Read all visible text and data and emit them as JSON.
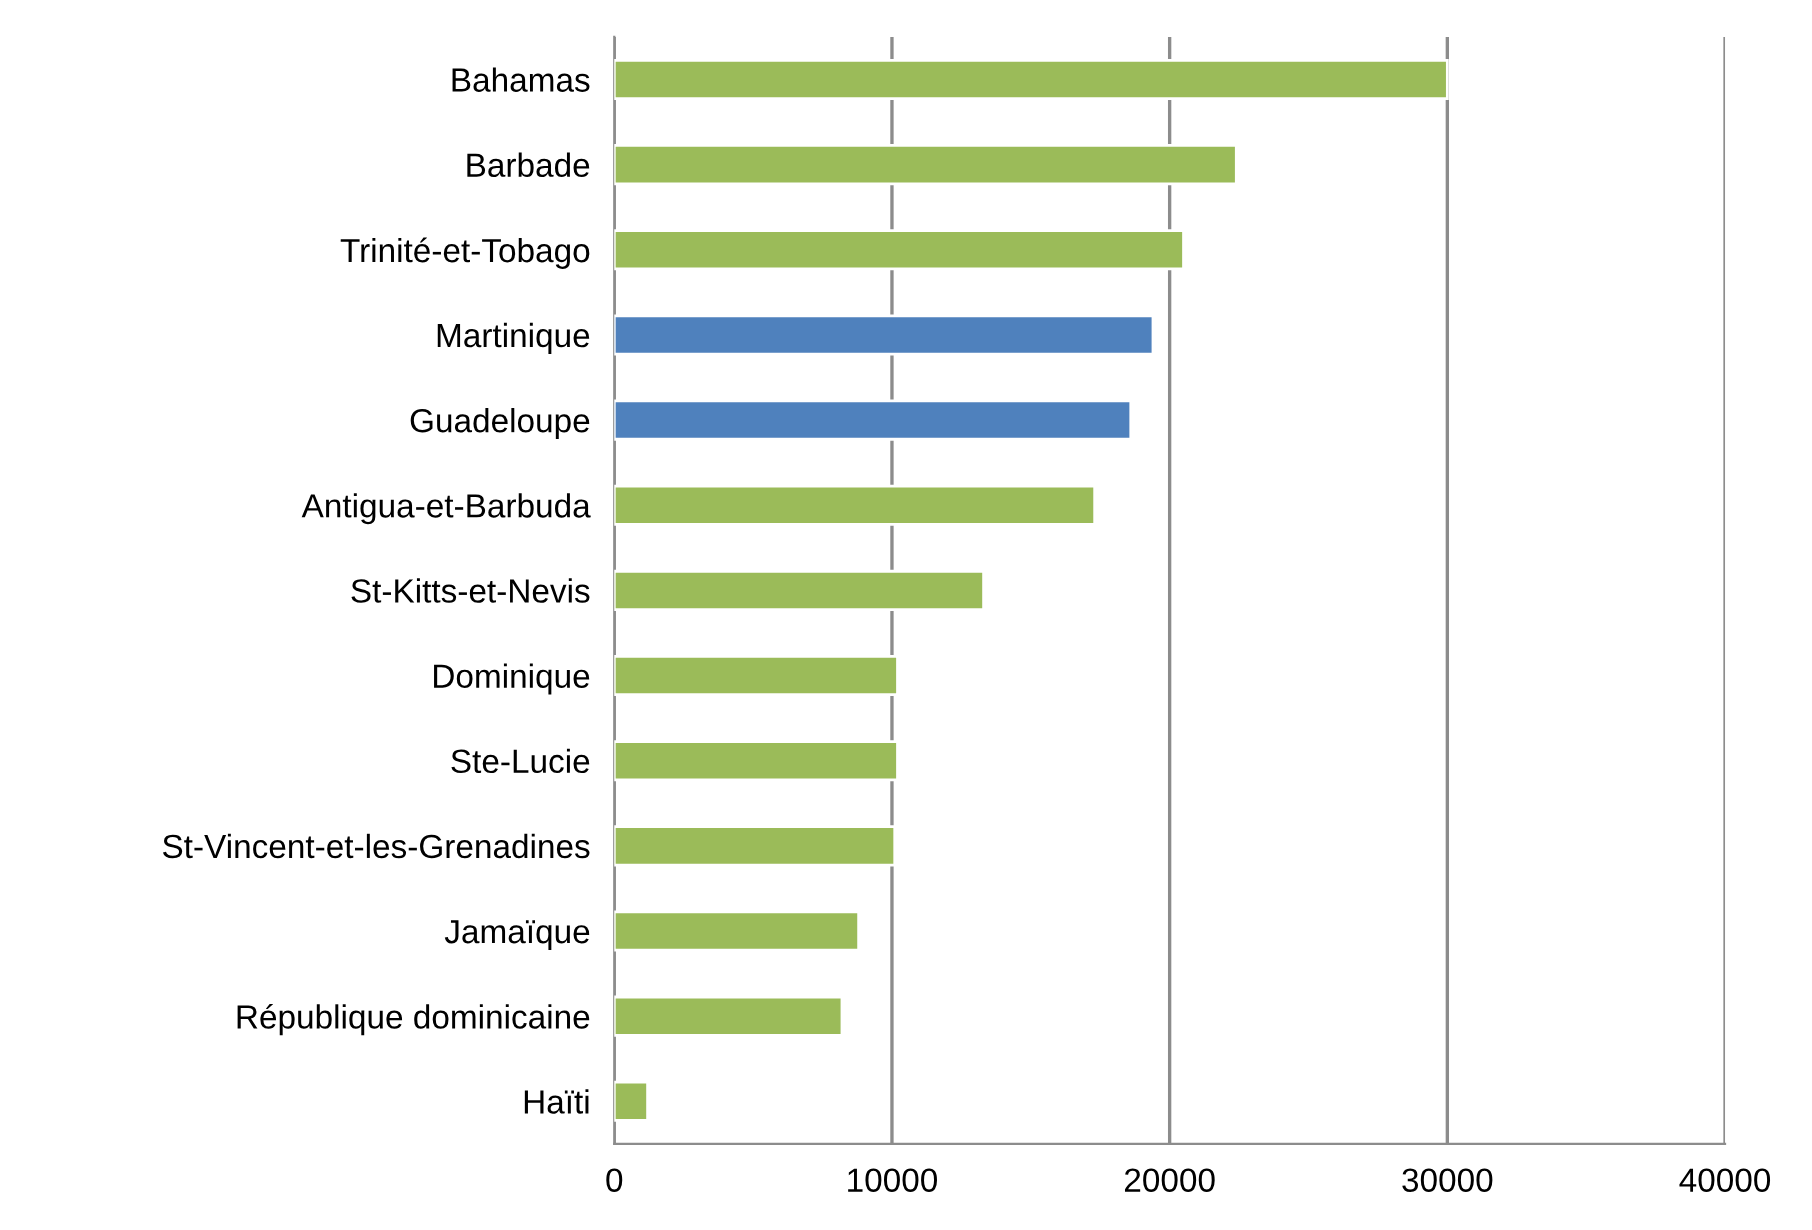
{
  "chart_data": {
    "type": "bar",
    "orientation": "horizontal",
    "categories": [
      "Bahamas",
      "Barbade",
      "Trinité-et-Tobago",
      "Martinique",
      "Guadeloupe",
      "Antigua-et-Barbuda",
      "St-Kitts-et-Nevis",
      "Dominique",
      "Ste-Lucie",
      "St-Vincent-et-les-Grenadines",
      "Jamaïque",
      "République dominicaine",
      "Haïti"
    ],
    "values": [
      30000,
      22400,
      20500,
      19400,
      18600,
      17300,
      13300,
      10200,
      10200,
      10100,
      8800,
      8200,
      1200
    ],
    "colors": [
      "#9bbb59",
      "#9bbb59",
      "#9bbb59",
      "#4f81bd",
      "#4f81bd",
      "#9bbb59",
      "#9bbb59",
      "#9bbb59",
      "#9bbb59",
      "#9bbb59",
      "#9bbb59",
      "#9bbb59",
      "#9bbb59"
    ],
    "xlim": [
      0,
      40000
    ],
    "xticks": [
      0,
      10000,
      20000,
      30000,
      40000
    ],
    "grid": "x"
  }
}
